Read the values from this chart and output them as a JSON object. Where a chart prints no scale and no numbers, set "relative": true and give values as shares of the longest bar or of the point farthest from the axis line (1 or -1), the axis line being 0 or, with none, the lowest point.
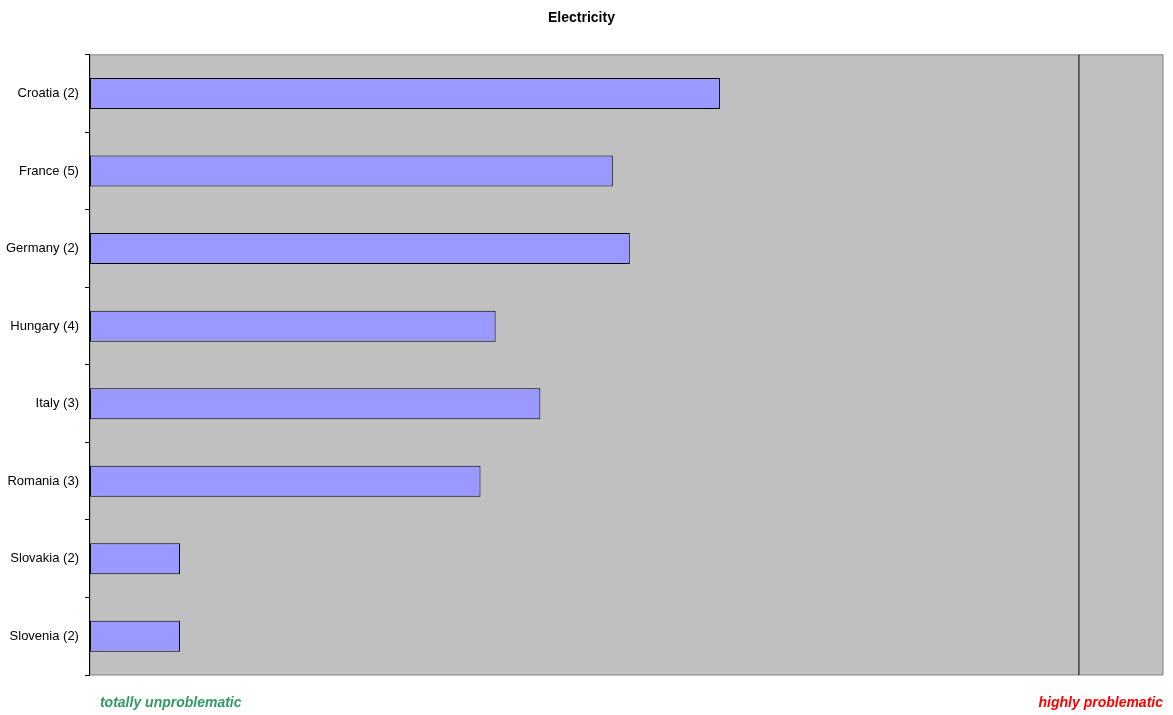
{
  "chart_data": {
    "type": "bar",
    "orientation": "horizontal",
    "relative": true,
    "title": "Electricity",
    "categories": [
      "Croatia (2)",
      "France (5)",
      "Germany (2)",
      "Hungary (4)",
      "Italy (3)",
      "Romania (3)",
      "Slovakia (2)",
      "Slovenia (2)"
    ],
    "values": [
      1,
      0.83,
      0.857,
      0.644,
      0.715,
      0.62,
      0.143,
      0.143
    ],
    "color": "#9999ff",
    "ref_lines": [
      {
        "axis": "x",
        "value": 1.57,
        "color": "#000000"
      }
    ],
    "annotations": [
      "totally unproblematic",
      "highly problematic"
    ],
    "legend": false
  }
}
